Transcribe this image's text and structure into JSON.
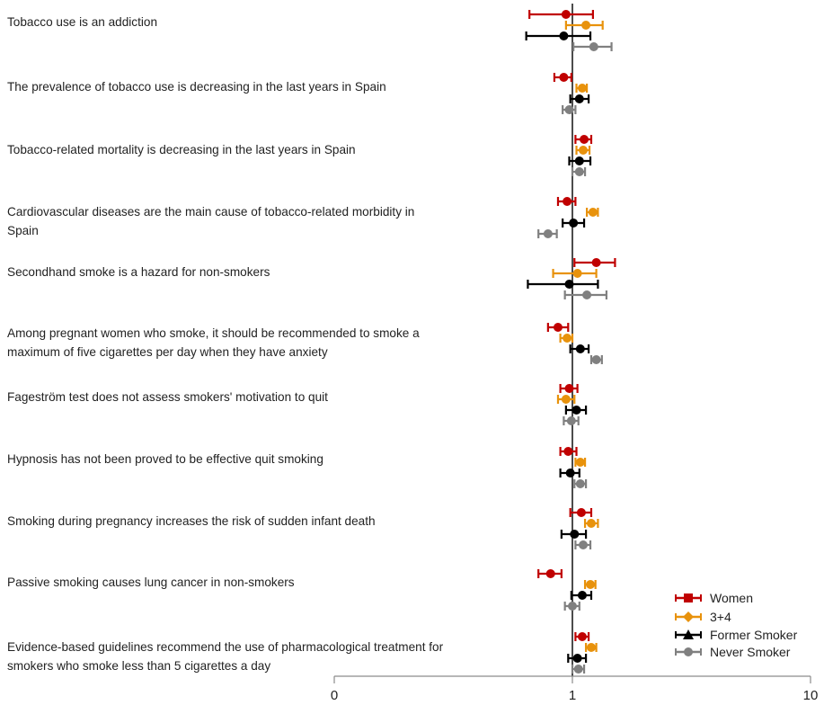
{
  "chart_data": {
    "type": "errorbar",
    "title": "",
    "xlabel": "",
    "ylabel": "",
    "x_scale": "log",
    "xlim": [
      0,
      10
    ],
    "x_ticks": [
      "0",
      "1",
      "10"
    ],
    "reference_line": 1,
    "legend_position": "bottom-right",
    "series": [
      {
        "name": "Women",
        "marker": "square",
        "color": "#c00000"
      },
      {
        "name": "3+4",
        "marker": "diamond",
        "color": "#e8920c"
      },
      {
        "name": "Former Smoker",
        "marker": "triangle",
        "color": "#000000"
      },
      {
        "name": "Never Smoker",
        "marker": "circle",
        "color": "#808080"
      }
    ],
    "categories": [
      {
        "label": "Tobacco use is an addiction",
        "values": [
          [
            0.94,
            0.66,
            1.22
          ],
          [
            1.14,
            0.94,
            1.34
          ],
          [
            0.92,
            0.64,
            1.19
          ],
          [
            1.23,
            1.01,
            1.46
          ]
        ]
      },
      {
        "label": "The prevalence of tobacco use is decreasing in the last years in Spain",
        "values": [
          [
            0.92,
            0.84,
            0.99
          ],
          [
            1.1,
            1.04,
            1.15
          ],
          [
            1.07,
            0.98,
            1.17
          ],
          [
            0.97,
            0.91,
            1.03
          ]
        ]
      },
      {
        "label": "Tobacco-related mortality is decreasing in the last years in Spain",
        "values": [
          [
            1.12,
            1.03,
            1.2
          ],
          [
            1.11,
            1.04,
            1.18
          ],
          [
            1.07,
            0.97,
            1.19
          ],
          [
            1.07,
            1.0,
            1.13
          ]
        ]
      },
      {
        "label": "Cardiovascular diseases are the main cause of tobacco-related morbidity in Spain",
        "values": [
          [
            0.95,
            0.87,
            1.03
          ],
          [
            1.22,
            1.15,
            1.28
          ],
          [
            1.01,
            0.91,
            1.12
          ],
          [
            0.79,
            0.72,
            0.86
          ]
        ]
      },
      {
        "label": "Secondhand smoke is a hazard for non-smokers",
        "values": [
          [
            1.26,
            1.02,
            1.51
          ],
          [
            1.05,
            0.83,
            1.26
          ],
          [
            0.97,
            0.65,
            1.28
          ],
          [
            1.15,
            0.93,
            1.39
          ]
        ]
      },
      {
        "label": "Among pregnant women who smoke, it should be recommended to smoke a maximum of five cigarettes per day when they have anxiety",
        "values": [
          [
            0.87,
            0.79,
            0.96
          ],
          [
            0.95,
            0.89,
            1.0
          ],
          [
            1.08,
            0.98,
            1.17
          ],
          [
            1.26,
            1.2,
            1.33
          ]
        ]
      },
      {
        "label": "Fageström test does not assess smokers' motivation to quit",
        "values": [
          [
            0.97,
            0.89,
            1.05
          ],
          [
            0.94,
            0.87,
            1.02
          ],
          [
            1.04,
            0.94,
            1.14
          ],
          [
            0.99,
            0.92,
            1.06
          ]
        ]
      },
      {
        "label": "Hypnosis has not been proved to be effective quit  smoking",
        "values": [
          [
            0.96,
            0.89,
            1.04
          ],
          [
            1.08,
            1.03,
            1.13
          ],
          [
            0.98,
            0.89,
            1.07
          ],
          [
            1.08,
            1.02,
            1.14
          ]
        ]
      },
      {
        "label": "Smoking during pregnancy increases the risk of sudden infant death",
        "values": [
          [
            1.09,
            0.98,
            1.2
          ],
          [
            1.2,
            1.13,
            1.28
          ],
          [
            1.02,
            0.9,
            1.14
          ],
          [
            1.11,
            1.03,
            1.19
          ]
        ]
      },
      {
        "label": "Passive smoking causes lung cancer in non-smokers",
        "values": [
          [
            0.81,
            0.72,
            0.9
          ],
          [
            1.19,
            1.13,
            1.25
          ],
          [
            1.1,
            0.99,
            1.2
          ],
          [
            1.0,
            0.93,
            1.07
          ]
        ]
      },
      {
        "label": "Evidence-based guidelines recommend the use of pharmacological treatment for smokers who smoke less than 5 cigarettes a day",
        "values": [
          [
            1.1,
            1.03,
            1.17
          ],
          [
            1.2,
            1.14,
            1.26
          ],
          [
            1.05,
            0.96,
            1.14
          ],
          [
            1.06,
            1.0,
            1.12
          ]
        ]
      }
    ]
  }
}
